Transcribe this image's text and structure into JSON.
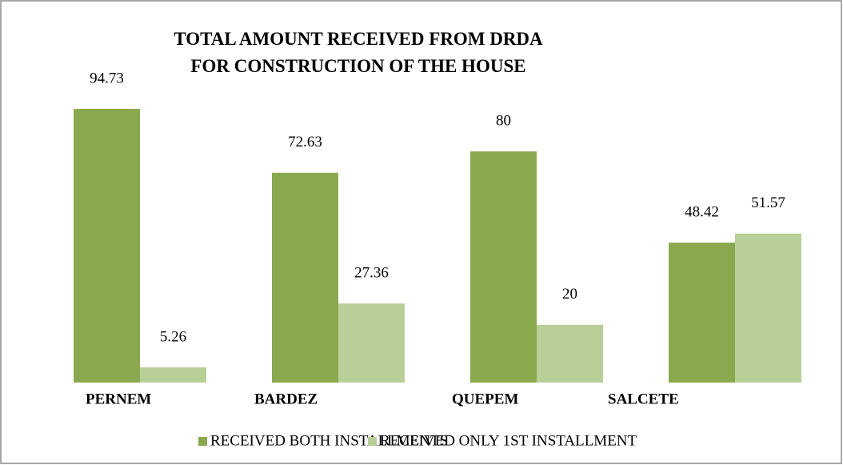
{
  "chart_data": {
    "type": "bar",
    "title": "TOTAL AMOUNT RECEIVED FROM DRDA FOR CONSTRUCTION OF THE HOUSE",
    "categories": [
      "PERNEM",
      "BARDEZ",
      "QUEPEM",
      "SALCETE"
    ],
    "series": [
      {
        "name": "RECEIVED BOTH INSTALLMENTS",
        "color": "#8aa94f",
        "values": [
          94.73,
          72.63,
          80,
          48.42
        ]
      },
      {
        "name": "RECEIVED ONLY 1ST INSTALLMENT",
        "color": "#b9cf98",
        "values": [
          5.26,
          27.36,
          20,
          51.57
        ]
      }
    ],
    "legend": "bottom"
  }
}
